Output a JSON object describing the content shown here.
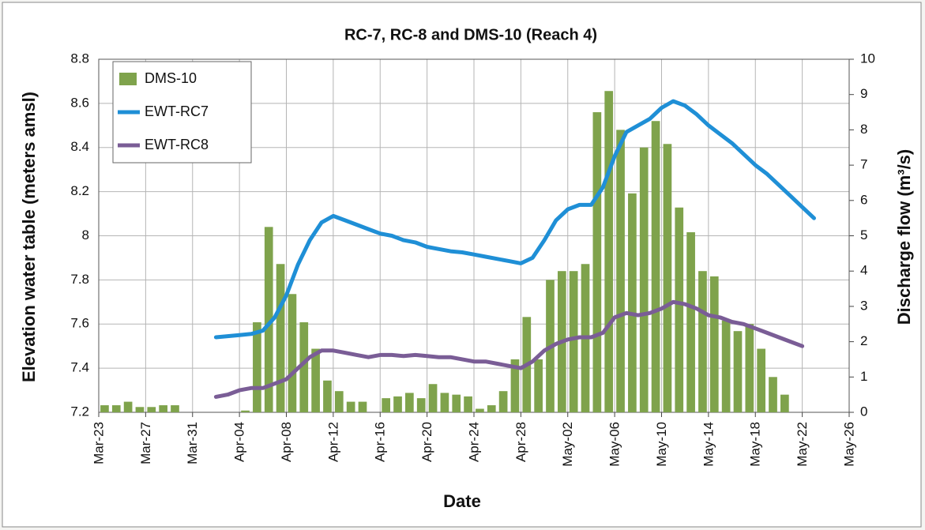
{
  "chart_data": {
    "type": "combo",
    "title": "RC-7, RC-8 and DMS-10 (Reach 4)",
    "xlabel": "Date",
    "ylabel": "Elevation water table (meters amsl)",
    "y2label": "Discharge flow (m³/s)",
    "categories": [
      "Mar-23",
      null,
      null,
      null,
      "Mar-27",
      null,
      null,
      null,
      "Mar-31",
      null,
      null,
      null,
      "Apr-04",
      null,
      null,
      null,
      "Apr-08",
      null,
      null,
      null,
      "Apr-12",
      null,
      null,
      null,
      "Apr-16",
      null,
      null,
      null,
      "Apr-20",
      null,
      null,
      null,
      "Apr-24",
      null,
      null,
      null,
      "Apr-28",
      null,
      null,
      null,
      "May-02",
      null,
      null,
      null,
      "May-06",
      null,
      null,
      null,
      "May-10",
      null,
      null,
      null,
      "May-14",
      null,
      null,
      null,
      "May-18",
      null,
      null,
      null,
      "May-22",
      null,
      null,
      null,
      "May-26"
    ],
    "ylim": [
      7.2,
      8.8
    ],
    "yticks": [
      7.2,
      7.4,
      7.6,
      7.8,
      8,
      8.2,
      8.4,
      8.6,
      8.8
    ],
    "y2lim": [
      0,
      10
    ],
    "y2ticks": [
      0,
      1,
      2,
      3,
      4,
      5,
      6,
      7,
      8,
      9,
      10
    ],
    "grid": true,
    "legend": "top-left",
    "series": [
      {
        "name": "DMS-10",
        "type": "bar",
        "axis": "y2",
        "color": "#7fa34c",
        "values": [
          0.2,
          0.2,
          0.3,
          0.15,
          0.15,
          0.2,
          0.2,
          null,
          null,
          null,
          null,
          null,
          0.05,
          2.55,
          5.25,
          4.2,
          3.35,
          2.55,
          1.8,
          0.9,
          0.6,
          0.3,
          0.3,
          null,
          0.4,
          0.45,
          0.55,
          0.4,
          0.8,
          0.55,
          0.5,
          0.45,
          0.1,
          0.2,
          0.6,
          1.5,
          2.7,
          1.5,
          3.75,
          4.0,
          4.0,
          4.2,
          8.5,
          9.1,
          8.0,
          6.2,
          7.5,
          8.25,
          7.6,
          5.8,
          5.1,
          4.0,
          3.85,
          2.6,
          2.3,
          2.5,
          1.8,
          1.0,
          0.5,
          null,
          null,
          null,
          null,
          null,
          null
        ]
      },
      {
        "name": "EWT-RC7",
        "type": "line",
        "axis": "y",
        "color": "#1f8fd6",
        "values": [
          null,
          null,
          null,
          null,
          null,
          null,
          null,
          null,
          null,
          null,
          7.54,
          7.545,
          7.55,
          7.555,
          7.57,
          7.63,
          7.73,
          7.87,
          7.98,
          8.06,
          8.09,
          8.07,
          8.05,
          8.03,
          8.01,
          8.0,
          7.98,
          7.97,
          7.95,
          7.94,
          7.93,
          7.925,
          7.915,
          7.905,
          7.895,
          7.885,
          7.875,
          7.9,
          7.98,
          8.07,
          8.12,
          8.14,
          8.14,
          8.22,
          8.36,
          8.47,
          8.5,
          8.53,
          8.58,
          8.61,
          8.59,
          8.55,
          8.5,
          8.46,
          8.42,
          8.37,
          8.32,
          8.28,
          8.23,
          8.18,
          8.13,
          8.08,
          null,
          null,
          null
        ]
      },
      {
        "name": "EWT-RC8",
        "type": "line",
        "axis": "y",
        "color": "#7a5d96",
        "values": [
          null,
          null,
          null,
          null,
          null,
          null,
          null,
          null,
          null,
          null,
          7.27,
          7.28,
          7.3,
          7.31,
          7.31,
          7.33,
          7.35,
          7.4,
          7.45,
          7.48,
          7.48,
          7.47,
          7.46,
          7.45,
          7.46,
          7.46,
          7.455,
          7.46,
          7.455,
          7.45,
          7.45,
          7.44,
          7.43,
          7.43,
          7.42,
          7.41,
          7.4,
          7.43,
          7.48,
          7.51,
          7.53,
          7.54,
          7.54,
          7.56,
          7.63,
          7.65,
          7.64,
          7.65,
          7.67,
          7.7,
          7.69,
          7.67,
          7.64,
          7.63,
          7.61,
          7.6,
          7.58,
          7.56,
          7.54,
          7.52,
          7.5,
          null,
          null,
          null,
          null
        ]
      }
    ]
  }
}
